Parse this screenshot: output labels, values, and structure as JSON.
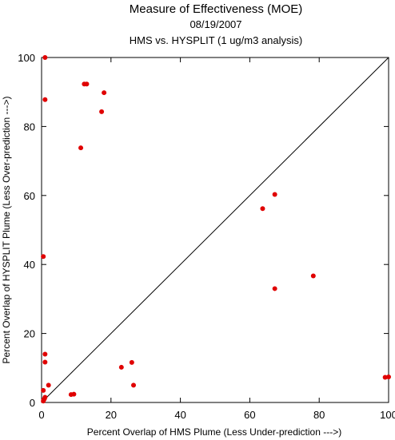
{
  "chart_data": {
    "type": "scatter",
    "title": "Measure of Effectiveness (MOE)",
    "subtitle_date": "08/19/2007",
    "subtitle": "HMS vs. HYSPLIT  (1 ug/m3 analysis)",
    "xlabel": "Percent Overlap of HMS Plume (Less Under-prediction --->)",
    "ylabel": "Percent Overlap of HYSPLIT Plume (Less Over-prediction --->)",
    "xlim": [
      0,
      100
    ],
    "ylim": [
      0,
      100
    ],
    "x_ticks": [
      0,
      20,
      40,
      60,
      80,
      100
    ],
    "y_ticks": [
      0,
      20,
      40,
      60,
      80,
      100
    ],
    "reference_line": "y = x",
    "point_color": "#e00000",
    "series": [
      {
        "points": [
          [
            1.0,
            100
          ],
          [
            1.0,
            87.8
          ],
          [
            12.3,
            92.3
          ],
          [
            13.0,
            92.3
          ],
          [
            18.0,
            89.8
          ],
          [
            17.3,
            84.3
          ],
          [
            11.3,
            73.8
          ],
          [
            0.5,
            42.3
          ],
          [
            67.2,
            60.3
          ],
          [
            63.7,
            56.2
          ],
          [
            78.3,
            36.7
          ],
          [
            67.2,
            33.0
          ],
          [
            1.0,
            14.0
          ],
          [
            1.0,
            11.7
          ],
          [
            2.0,
            5.0
          ],
          [
            0.5,
            3.5
          ],
          [
            1.0,
            1.5
          ],
          [
            0.8,
            1.0
          ],
          [
            0.6,
            0.8
          ],
          [
            0.5,
            0.4
          ],
          [
            23.0,
            10.2
          ],
          [
            26.0,
            11.6
          ],
          [
            26.5,
            5.0
          ],
          [
            8.5,
            2.3
          ],
          [
            9.3,
            2.4
          ],
          [
            99.0,
            7.3
          ],
          [
            100.0,
            7.4
          ]
        ]
      }
    ]
  }
}
